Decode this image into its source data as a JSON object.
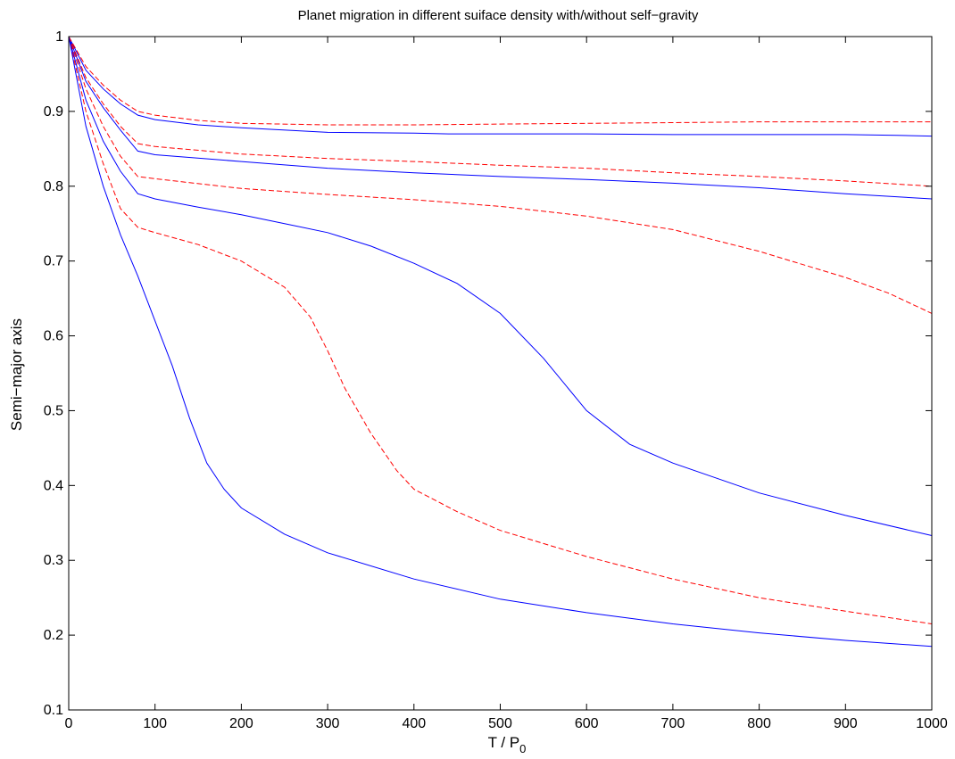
{
  "chart_data": {
    "type": "line",
    "title": "Planet migration in different suiface density with/without self−gravity",
    "xlabel_main": "T / P",
    "xlabel_sub": "0",
    "ylabel": "Semi−major axis",
    "xlim": [
      0,
      1000
    ],
    "ylim": [
      0.1,
      1
    ],
    "xticks": [
      0,
      100,
      200,
      300,
      400,
      500,
      600,
      700,
      800,
      900,
      1000
    ],
    "yticks": [
      0.1,
      0.2,
      0.3,
      0.4,
      0.5,
      0.6,
      0.7,
      0.8,
      0.9,
      1
    ],
    "ytick_labels": [
      "0.1",
      "0.2",
      "0.3",
      "0.4",
      "0.5",
      "0.6",
      "0.7",
      "0.8",
      "0.9",
      "1"
    ],
    "grid": false,
    "legend": "none",
    "series": [
      {
        "style": "solid",
        "color": "#0000ff",
        "x": [
          0,
          20,
          40,
          60,
          80,
          100,
          150,
          200,
          300,
          400,
          440,
          500,
          600,
          700,
          800,
          900,
          960,
          1000
        ],
        "y": [
          1.0,
          0.955,
          0.93,
          0.91,
          0.895,
          0.889,
          0.882,
          0.878,
          0.872,
          0.871,
          0.87,
          0.87,
          0.87,
          0.869,
          0.869,
          0.869,
          0.868,
          0.867
        ]
      },
      {
        "style": "dashed",
        "color": "#ff0000",
        "x": [
          0,
          20,
          40,
          60,
          80,
          100,
          150,
          200,
          300,
          400,
          500,
          600,
          700,
          800,
          900,
          1000
        ],
        "y": [
          1.0,
          0.96,
          0.935,
          0.915,
          0.9,
          0.895,
          0.888,
          0.884,
          0.882,
          0.882,
          0.883,
          0.884,
          0.885,
          0.886,
          0.886,
          0.886
        ]
      },
      {
        "style": "solid",
        "color": "#0000ff",
        "x": [
          0,
          20,
          40,
          60,
          80,
          100,
          200,
          300,
          400,
          500,
          600,
          700,
          800,
          900,
          1000
        ],
        "y": [
          1.0,
          0.94,
          0.905,
          0.875,
          0.847,
          0.842,
          0.833,
          0.824,
          0.818,
          0.813,
          0.809,
          0.804,
          0.798,
          0.79,
          0.783
        ]
      },
      {
        "style": "dashed",
        "color": "#ff0000",
        "x": [
          0,
          20,
          40,
          60,
          80,
          100,
          200,
          300,
          400,
          500,
          600,
          700,
          800,
          900,
          1000
        ],
        "y": [
          1.0,
          0.945,
          0.91,
          0.88,
          0.857,
          0.853,
          0.843,
          0.837,
          0.833,
          0.828,
          0.824,
          0.818,
          0.813,
          0.807,
          0.8
        ]
      },
      {
        "style": "dashed",
        "color": "#ff0000",
        "x": [
          0,
          20,
          40,
          60,
          80,
          100,
          200,
          300,
          400,
          500,
          600,
          700,
          800,
          900,
          950,
          1000
        ],
        "y": [
          1.0,
          0.93,
          0.88,
          0.84,
          0.813,
          0.81,
          0.797,
          0.789,
          0.782,
          0.773,
          0.76,
          0.742,
          0.713,
          0.678,
          0.657,
          0.63
        ]
      },
      {
        "style": "solid",
        "color": "#0000ff",
        "x": [
          0,
          20,
          40,
          60,
          80,
          100,
          150,
          200,
          250,
          300,
          350,
          400,
          450,
          500,
          550,
          600,
          650,
          700,
          800,
          900,
          1000
        ],
        "y": [
          1.0,
          0.915,
          0.86,
          0.82,
          0.79,
          0.783,
          0.772,
          0.762,
          0.75,
          0.738,
          0.72,
          0.697,
          0.67,
          0.63,
          0.57,
          0.5,
          0.455,
          0.43,
          0.39,
          0.36,
          0.333
        ]
      },
      {
        "style": "dashed",
        "color": "#ff0000",
        "x": [
          0,
          20,
          40,
          60,
          80,
          100,
          150,
          200,
          250,
          280,
          300,
          320,
          350,
          380,
          400,
          450,
          500,
          600,
          700,
          800,
          900,
          1000
        ],
        "y": [
          1.0,
          0.9,
          0.83,
          0.77,
          0.745,
          0.738,
          0.722,
          0.7,
          0.665,
          0.625,
          0.58,
          0.53,
          0.47,
          0.42,
          0.395,
          0.365,
          0.34,
          0.305,
          0.275,
          0.25,
          0.232,
          0.215
        ]
      },
      {
        "style": "solid",
        "color": "#0000ff",
        "x": [
          0,
          20,
          40,
          60,
          80,
          100,
          120,
          140,
          160,
          180,
          200,
          250,
          300,
          400,
          500,
          600,
          700,
          800,
          900,
          1000
        ],
        "y": [
          1.0,
          0.88,
          0.8,
          0.735,
          0.68,
          0.62,
          0.56,
          0.49,
          0.43,
          0.395,
          0.37,
          0.335,
          0.31,
          0.275,
          0.248,
          0.23,
          0.215,
          0.203,
          0.193,
          0.185
        ]
      }
    ]
  }
}
